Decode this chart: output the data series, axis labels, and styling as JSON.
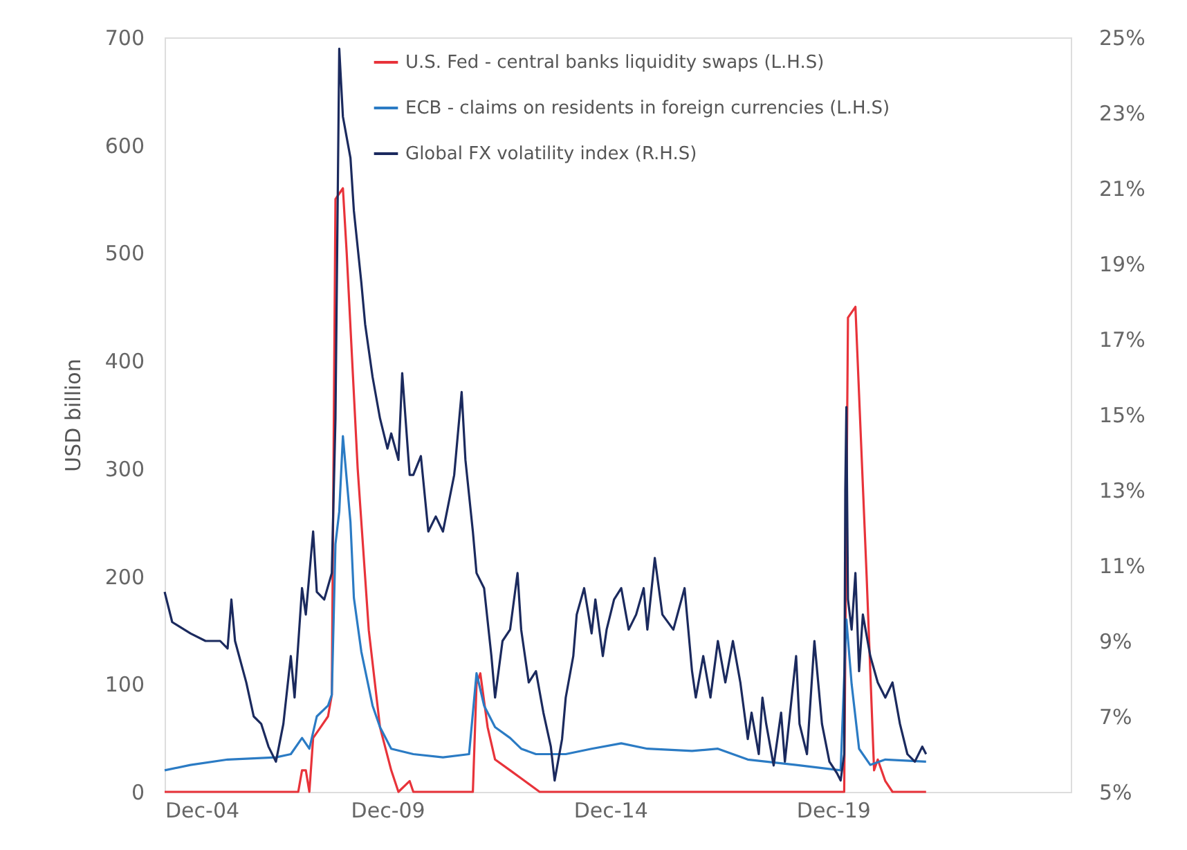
{
  "chart_data": {
    "type": "line",
    "ylabel": "USD billion",
    "legend": "top",
    "line_style": "solid",
    "xlim": [
      "2004-12",
      "2025-04"
    ],
    "xticks": [
      {
        "value": "2004-12",
        "label": "Dec-04"
      },
      {
        "value": "2009-12",
        "label": "Dec-09"
      },
      {
        "value": "2014-12",
        "label": "Dec-14"
      },
      {
        "value": "2019-12",
        "label": "Dec-19"
      }
    ],
    "ylim": [
      0,
      700
    ],
    "yticks": [
      0,
      100,
      200,
      300,
      400,
      500,
      600,
      700
    ],
    "y2lim": [
      5,
      25
    ],
    "y2ticks": [
      {
        "value": 5,
        "label": "5%"
      },
      {
        "value": 7,
        "label": "7%"
      },
      {
        "value": 9,
        "label": "9%"
      },
      {
        "value": 11,
        "label": "11%"
      },
      {
        "value": 13,
        "label": "13%"
      },
      {
        "value": 15,
        "label": "15%"
      },
      {
        "value": 17,
        "label": "17%"
      },
      {
        "value": 19,
        "label": "19%"
      },
      {
        "value": 21,
        "label": "21%"
      },
      {
        "value": 23,
        "label": "23%"
      },
      {
        "value": 25,
        "label": "25%"
      }
    ],
    "series": [
      {
        "name": "U.S. Fed - central banks liquidity swaps (L.H.S)",
        "color": "#e8333a",
        "x": [
          "2004-12",
          "2007-12",
          "2008-01",
          "2008-02",
          "2008-03",
          "2008-04",
          "2008-06",
          "2008-08",
          "2008-09",
          "2008-10",
          "2008-12",
          "2009-01",
          "2009-04",
          "2009-07",
          "2009-10",
          "2010-01",
          "2010-03",
          "2010-06",
          "2010-07",
          "2011-11",
          "2011-12",
          "2012-01",
          "2012-03",
          "2012-05",
          "2012-09",
          "2013-01",
          "2013-05",
          "2020-03",
          "2020-04",
          "2020-06",
          "2020-09",
          "2020-11",
          "2020-12",
          "2021-02",
          "2021-04",
          "2022-01"
        ],
        "values": [
          0,
          0,
          20,
          20,
          0,
          50,
          60,
          70,
          90,
          550,
          560,
          500,
          300,
          150,
          60,
          20,
          0,
          10,
          0,
          0,
          100,
          110,
          60,
          30,
          20,
          10,
          0,
          0,
          440,
          450,
          200,
          20,
          30,
          10,
          0,
          0
        ]
      },
      {
        "name": "ECB - claims on residents in foreign currencies (L.H.S)",
        "color": "#2b7bc4",
        "x": [
          "2004-12",
          "2005-07",
          "2006-05",
          "2007-06",
          "2007-10",
          "2008-01",
          "2008-03",
          "2008-05",
          "2008-08",
          "2008-09",
          "2008-10",
          "2008-11",
          "2008-12",
          "2009-02",
          "2009-03",
          "2009-05",
          "2009-08",
          "2009-10",
          "2010-01",
          "2010-07",
          "2011-03",
          "2011-10",
          "2011-12",
          "2012-02",
          "2012-05",
          "2012-09",
          "2012-12",
          "2013-04",
          "2013-12",
          "2014-07",
          "2015-03",
          "2015-10",
          "2016-10",
          "2017-05",
          "2018-01",
          "2019-02",
          "2020-02",
          "2020-03-19",
          "2020-05",
          "2020-07",
          "2020-10",
          "2021-02",
          "2022-01"
        ],
        "values": [
          20,
          25,
          30,
          32,
          35,
          50,
          40,
          70,
          80,
          90,
          230,
          260,
          330,
          250,
          180,
          130,
          80,
          60,
          40,
          35,
          32,
          35,
          110,
          80,
          60,
          50,
          40,
          35,
          35,
          40,
          45,
          40,
          38,
          40,
          30,
          25,
          20,
          160,
          100,
          40,
          25,
          30,
          28
        ]
      },
      {
        "name": "Global FX volatility index (R.H.S)",
        "color": "#1b2a5e",
        "axis": "y2",
        "x": [
          "2004-12",
          "2005-02",
          "2005-07",
          "2005-11",
          "2006-03",
          "2006-05",
          "2006-06",
          "2006-07",
          "2006-10",
          "2006-12",
          "2007-02",
          "2007-04",
          "2007-06",
          "2007-08",
          "2007-10",
          "2007-11",
          "2008-01",
          "2008-02",
          "2008-04",
          "2008-05",
          "2008-07",
          "2008-09",
          "2008-10",
          "2008-11",
          "2008-12",
          "2009-02",
          "2009-03",
          "2009-05",
          "2009-06",
          "2009-08",
          "2009-10",
          "2009-12",
          "2010-01",
          "2010-03",
          "2010-04",
          "2010-06",
          "2010-07",
          "2010-09",
          "2010-11",
          "2011-01",
          "2011-03",
          "2011-06",
          "2011-08",
          "2011-09",
          "2011-11",
          "2011-12",
          "2012-02",
          "2012-04",
          "2012-05",
          "2012-07",
          "2012-09",
          "2012-11",
          "2012-12",
          "2013-02",
          "2013-04",
          "2013-06",
          "2013-08",
          "2013-09",
          "2013-11",
          "2013-12",
          "2014-02",
          "2014-03",
          "2014-05",
          "2014-07",
          "2014-08",
          "2014-10",
          "2014-11",
          "2015-01",
          "2015-03",
          "2015-05",
          "2015-07",
          "2015-09",
          "2015-10",
          "2015-12",
          "2016-02",
          "2016-05",
          "2016-08",
          "2016-10",
          "2016-11",
          "2017-01",
          "2017-03",
          "2017-05",
          "2017-07",
          "2017-09",
          "2017-11",
          "2018-01",
          "2018-02",
          "2018-04",
          "2018-05",
          "2018-06",
          "2018-08",
          "2018-10",
          "2018-11",
          "2019-02",
          "2019-03",
          "2019-05",
          "2019-07",
          "2019-09",
          "2019-11",
          "2020-01",
          "2020-02",
          "2020-03-01",
          "2020-03-10",
          "2020-03-19",
          "2020-04",
          "2020-05",
          "2020-06",
          "2020-07",
          "2020-08",
          "2020-10",
          "2020-12",
          "2021-02",
          "2021-04",
          "2021-06",
          "2021-08",
          "2021-10",
          "2021-12",
          "2022-01"
        ],
        "values": [
          10.3,
          9.5,
          9.2,
          9.0,
          9.0,
          8.8,
          10.1,
          9.0,
          7.9,
          7.0,
          6.8,
          6.2,
          5.8,
          6.8,
          8.6,
          7.5,
          10.4,
          9.7,
          11.9,
          10.3,
          10.1,
          10.8,
          14.9,
          24.7,
          22.9,
          21.8,
          20.4,
          18.5,
          17.4,
          16.0,
          14.9,
          14.1,
          14.5,
          13.8,
          16.1,
          13.4,
          13.4,
          13.9,
          11.9,
          12.3,
          11.9,
          13.4,
          15.6,
          13.8,
          11.9,
          10.8,
          10.4,
          8.6,
          7.5,
          9.0,
          9.3,
          10.8,
          9.3,
          7.9,
          8.2,
          7.1,
          6.2,
          5.3,
          6.4,
          7.5,
          8.6,
          9.7,
          10.4,
          9.2,
          10.1,
          8.6,
          9.3,
          10.1,
          10.4,
          9.3,
          9.7,
          10.4,
          9.3,
          11.2,
          9.7,
          9.3,
          10.4,
          8.2,
          7.5,
          8.6,
          7.5,
          9.0,
          7.9,
          9.0,
          7.9,
          6.4,
          7.1,
          6.0,
          7.5,
          6.8,
          5.7,
          7.1,
          5.8,
          8.6,
          6.8,
          6.0,
          9.0,
          6.8,
          5.8,
          5.5,
          5.3,
          6.0,
          13.0,
          15.2,
          10.1,
          9.3,
          10.8,
          8.2,
          9.7,
          8.6,
          7.9,
          7.5,
          7.9,
          6.8,
          6.0,
          5.8,
          6.2,
          6.0
        ]
      }
    ]
  }
}
